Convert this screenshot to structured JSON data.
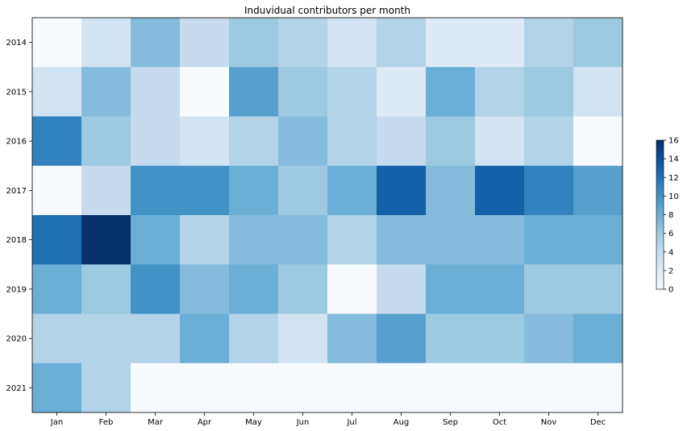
{
  "chart_data": {
    "type": "heatmap",
    "title": "Induvidual contributors per month",
    "xlabel": "",
    "ylabel": "",
    "colormap": "Blues",
    "x_categories": [
      "Jan",
      "Feb",
      "Mar",
      "Apr",
      "May",
      "Jun",
      "Jul",
      "Aug",
      "Sep",
      "Oct",
      "Nov",
      "Dec"
    ],
    "y_categories": [
      "2014",
      "2015",
      "2016",
      "2017",
      "2018",
      "2019",
      "2020",
      "2021"
    ],
    "values": [
      [
        0,
        3,
        7,
        4,
        6,
        5,
        3,
        5,
        2,
        2,
        5,
        6
      ],
      [
        3,
        7,
        4,
        0,
        9,
        6,
        5,
        2,
        8,
        5,
        6,
        3
      ],
      [
        11,
        6,
        4,
        3,
        5,
        7,
        5,
        4,
        6,
        3,
        5,
        0
      ],
      [
        0,
        4,
        10,
        10,
        8,
        6,
        8,
        13,
        7,
        13,
        11,
        9
      ],
      [
        12,
        16,
        8,
        5,
        7,
        7,
        5,
        7,
        7,
        7,
        8,
        8
      ],
      [
        8,
        6,
        10,
        7,
        8,
        6,
        0,
        4,
        8,
        8,
        6,
        6
      ],
      [
        5,
        5,
        5,
        8,
        5,
        3,
        7,
        9,
        6,
        6,
        7,
        8
      ],
      [
        8,
        5,
        0,
        0,
        0,
        0,
        0,
        0,
        0,
        0,
        0,
        0
      ]
    ],
    "colorbar": {
      "range": [
        0,
        16
      ],
      "ticks": [
        "0",
        "2",
        "4",
        "6",
        "8",
        "10",
        "12",
        "14",
        "16"
      ]
    }
  }
}
